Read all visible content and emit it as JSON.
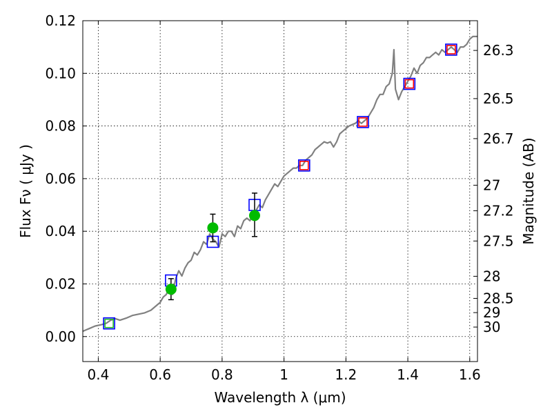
{
  "chart_data": {
    "type": "line",
    "xlabel": "Wavelength  λ (μm)",
    "ylabel": "Flux  Fν ( μJy )",
    "y2label": "Magnitude (AB)",
    "xlim": [
      0.35,
      1.625
    ],
    "ylim": [
      -0.0095,
      0.12
    ],
    "x_ticks": [
      0.4,
      0.6,
      0.8,
      1.0,
      1.2,
      1.4,
      1.6
    ],
    "x_tick_labels": [
      "0.4",
      "0.6",
      "0.8",
      "1",
      "1.2",
      "1.4",
      "1.6"
    ],
    "y_ticks": [
      0.0,
      0.02,
      0.04,
      0.06,
      0.08,
      0.1,
      0.12
    ],
    "y_tick_labels": [
      "0.00",
      "0.02",
      "0.04",
      "0.06",
      "0.08",
      "0.10",
      "0.12"
    ],
    "y2_ticks": [
      {
        "flux": 0.1087,
        "label": "26.3"
      },
      {
        "flux": 0.0904,
        "label": "26.5"
      },
      {
        "flux": 0.0752,
        "label": "26.7"
      },
      {
        "flux": 0.0575,
        "label": "27"
      },
      {
        "flux": 0.0478,
        "label": "27.2"
      },
      {
        "flux": 0.0363,
        "label": "27.5"
      },
      {
        "flux": 0.0229,
        "label": "28"
      },
      {
        "flux": 0.0145,
        "label": "28.5"
      },
      {
        "flux": 0.0091,
        "label": "29"
      },
      {
        "flux": 0.0036,
        "label": "30"
      }
    ],
    "grid": true,
    "series": [
      {
        "kind": "line",
        "color": "#808080",
        "points": [
          [
            0.35,
            0.002
          ],
          [
            0.37,
            0.003
          ],
          [
            0.39,
            0.004
          ],
          [
            0.41,
            0.0045
          ],
          [
            0.425,
            0.005
          ],
          [
            0.44,
            0.0062
          ],
          [
            0.455,
            0.0068
          ],
          [
            0.47,
            0.0062
          ],
          [
            0.49,
            0.007
          ],
          [
            0.51,
            0.008
          ],
          [
            0.53,
            0.0085
          ],
          [
            0.55,
            0.009
          ],
          [
            0.57,
            0.01
          ],
          [
            0.59,
            0.012
          ],
          [
            0.6,
            0.013
          ],
          [
            0.61,
            0.015
          ],
          [
            0.62,
            0.016
          ],
          [
            0.63,
            0.019
          ],
          [
            0.64,
            0.016
          ],
          [
            0.65,
            0.022
          ],
          [
            0.66,
            0.025
          ],
          [
            0.67,
            0.023
          ],
          [
            0.68,
            0.026
          ],
          [
            0.69,
            0.028
          ],
          [
            0.7,
            0.029
          ],
          [
            0.71,
            0.032
          ],
          [
            0.72,
            0.031
          ],
          [
            0.73,
            0.033
          ],
          [
            0.74,
            0.036
          ],
          [
            0.75,
            0.035
          ],
          [
            0.76,
            0.039
          ],
          [
            0.77,
            0.037
          ],
          [
            0.78,
            0.036
          ],
          [
            0.79,
            0.034
          ],
          [
            0.8,
            0.039
          ],
          [
            0.81,
            0.038
          ],
          [
            0.82,
            0.04
          ],
          [
            0.83,
            0.04
          ],
          [
            0.84,
            0.038
          ],
          [
            0.85,
            0.042
          ],
          [
            0.86,
            0.041
          ],
          [
            0.87,
            0.044
          ],
          [
            0.88,
            0.045
          ],
          [
            0.89,
            0.044
          ],
          [
            0.9,
            0.047
          ],
          [
            0.91,
            0.048
          ],
          [
            0.92,
            0.05
          ],
          [
            0.93,
            0.049
          ],
          [
            0.94,
            0.052
          ],
          [
            0.95,
            0.054
          ],
          [
            0.96,
            0.056
          ],
          [
            0.97,
            0.058
          ],
          [
            0.98,
            0.057
          ],
          [
            0.99,
            0.059
          ],
          [
            1.0,
            0.061
          ],
          [
            1.01,
            0.062
          ],
          [
            1.02,
            0.063
          ],
          [
            1.03,
            0.064
          ],
          [
            1.04,
            0.064
          ],
          [
            1.05,
            0.065
          ],
          [
            1.06,
            0.065
          ],
          [
            1.07,
            0.067
          ],
          [
            1.08,
            0.068
          ],
          [
            1.09,
            0.069
          ],
          [
            1.1,
            0.071
          ],
          [
            1.11,
            0.072
          ],
          [
            1.12,
            0.073
          ],
          [
            1.13,
            0.074
          ],
          [
            1.14,
            0.0735
          ],
          [
            1.15,
            0.074
          ],
          [
            1.16,
            0.072
          ],
          [
            1.17,
            0.074
          ],
          [
            1.18,
            0.077
          ],
          [
            1.19,
            0.078
          ],
          [
            1.2,
            0.079
          ],
          [
            1.21,
            0.08
          ],
          [
            1.22,
            0.0805
          ],
          [
            1.23,
            0.081
          ],
          [
            1.24,
            0.082
          ],
          [
            1.25,
            0.081
          ],
          [
            1.26,
            0.082
          ],
          [
            1.27,
            0.083
          ],
          [
            1.28,
            0.085
          ],
          [
            1.29,
            0.087
          ],
          [
            1.3,
            0.09
          ],
          [
            1.31,
            0.092
          ],
          [
            1.32,
            0.092
          ],
          [
            1.33,
            0.095
          ],
          [
            1.34,
            0.096
          ],
          [
            1.35,
            0.1
          ],
          [
            1.355,
            0.109
          ],
          [
            1.36,
            0.094
          ],
          [
            1.37,
            0.09
          ],
          [
            1.38,
            0.093
          ],
          [
            1.39,
            0.095
          ],
          [
            1.4,
            0.097
          ],
          [
            1.41,
            0.099
          ],
          [
            1.42,
            0.102
          ],
          [
            1.43,
            0.1
          ],
          [
            1.44,
            0.103
          ],
          [
            1.45,
            0.104
          ],
          [
            1.46,
            0.106
          ],
          [
            1.47,
            0.106
          ],
          [
            1.48,
            0.107
          ],
          [
            1.49,
            0.108
          ],
          [
            1.5,
            0.107
          ],
          [
            1.51,
            0.109
          ],
          [
            1.52,
            0.108
          ],
          [
            1.53,
            0.109
          ],
          [
            1.54,
            0.11
          ],
          [
            1.55,
            0.109
          ],
          [
            1.56,
            0.108
          ],
          [
            1.57,
            0.11
          ],
          [
            1.58,
            0.11
          ],
          [
            1.59,
            0.111
          ],
          [
            1.6,
            0.113
          ],
          [
            1.61,
            0.114
          ],
          [
            1.625,
            0.114
          ]
        ]
      },
      {
        "kind": "square",
        "color": "#0000ff",
        "points": [
          [
            0.435,
            0.005
          ],
          [
            0.635,
            0.0213
          ],
          [
            0.77,
            0.036
          ],
          [
            0.905,
            0.05
          ],
          [
            1.065,
            0.065
          ],
          [
            1.255,
            0.0815
          ],
          [
            1.405,
            0.096
          ],
          [
            1.54,
            0.109
          ]
        ]
      },
      {
        "kind": "square",
        "color": "#ff0000",
        "points": [
          [
            1.065,
            0.065
          ],
          [
            1.255,
            0.0815
          ],
          [
            1.405,
            0.096
          ],
          [
            1.54,
            0.109
          ]
        ]
      },
      {
        "kind": "square",
        "color": "#22bb22",
        "points": [
          [
            0.435,
            0.005
          ]
        ]
      },
      {
        "kind": "errorbar",
        "color": "#00bb00",
        "points": [
          {
            "x": 0.635,
            "y": 0.018,
            "lo": 0.014,
            "hi": 0.022
          },
          {
            "x": 0.77,
            "y": 0.0413,
            "lo": 0.036,
            "hi": 0.0465
          },
          {
            "x": 0.905,
            "y": 0.046,
            "lo": 0.038,
            "hi": 0.0545
          }
        ]
      }
    ]
  }
}
